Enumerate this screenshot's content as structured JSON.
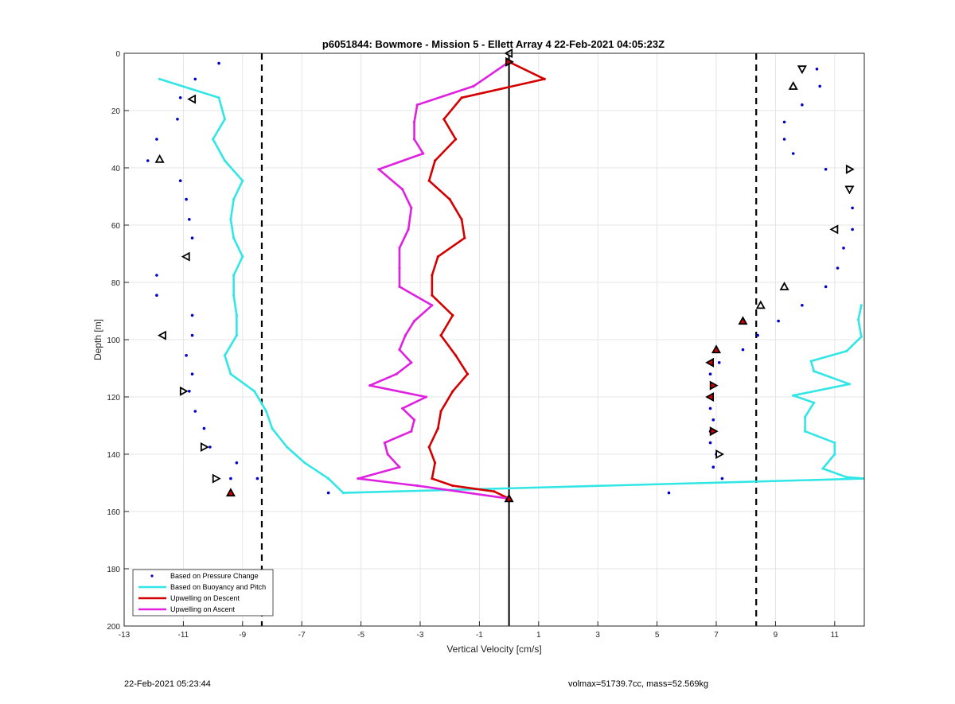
{
  "footer": {
    "timestamp": "22-Feb-2021 05:23:44",
    "summary": "volmax=51739.7cc, mass=52.569kg"
  },
  "colors": {
    "pressure": "#0000cc",
    "buoyancy": "#33e6e6",
    "descent": "#d40000",
    "ascent": "#e020e0",
    "grid": "#e6e6e6",
    "axis": "#262626"
  },
  "chart_data": {
    "type": "line",
    "title": "p6051844: Bowmore - Mission 5 - Ellett Array 4 22-Feb-2021 04:05:23Z",
    "xlabel": "Vertical Velocity [cm/s]",
    "ylabel": "Depth [m]",
    "xlim": [
      -13,
      12
    ],
    "ylim": [
      0,
      200
    ],
    "y_reversed": true,
    "grid": true,
    "legend_position": "bottom-left",
    "xticks": [
      -13,
      -11,
      -9,
      -7,
      -5,
      -3,
      -1,
      1,
      3,
      5,
      7,
      9,
      11
    ],
    "yticks": [
      0,
      20,
      40,
      60,
      80,
      100,
      120,
      140,
      160,
      180,
      200
    ],
    "reference_lines": {
      "solid_x": 0,
      "dashed_x": [
        -8.35,
        8.35
      ]
    },
    "legend": [
      "Based on Pressure Change",
      "Based on Buoyancy and Pitch",
      "Upwelling on Descent",
      "Upwelling on Ascent"
    ],
    "series": [
      {
        "name": "Based on Pressure Change",
        "points": [
          [
            -9.8,
            3.5
          ],
          [
            -10.6,
            9
          ],
          [
            -11.1,
            15.5
          ],
          [
            -11.2,
            23
          ],
          [
            -11.9,
            30
          ],
          [
            -12.2,
            37.5
          ],
          [
            -11.1,
            44.5
          ],
          [
            -10.9,
            51
          ],
          [
            -10.8,
            58
          ],
          [
            -10.7,
            64.5
          ],
          [
            -10.9,
            71
          ],
          [
            -11.9,
            77.5
          ],
          [
            -11.9,
            84.5
          ],
          [
            -10.7,
            91.5
          ],
          [
            -10.7,
            98.5
          ],
          [
            -10.9,
            105.5
          ],
          [
            -10.7,
            112
          ],
          [
            -10.8,
            118
          ],
          [
            -10.6,
            125
          ],
          [
            -10.3,
            131
          ],
          [
            -10.1,
            137.5
          ],
          [
            -9.2,
            143
          ],
          [
            -9.4,
            148.5
          ],
          [
            -8.5,
            148.5
          ],
          [
            -9.4,
            153.5
          ],
          [
            -6.1,
            153.5
          ],
          [
            0,
            155.5
          ],
          [
            5.4,
            153.5
          ],
          [
            10.4,
            5.5
          ],
          [
            10.5,
            11.5
          ],
          [
            9.9,
            18
          ],
          [
            9.3,
            24
          ],
          [
            9.3,
            30
          ],
          [
            9.6,
            35
          ],
          [
            10.7,
            40.5
          ],
          [
            11.5,
            47.5
          ],
          [
            11.6,
            54
          ],
          [
            11.6,
            61.5
          ],
          [
            11.3,
            68
          ],
          [
            11.1,
            75
          ],
          [
            10.7,
            81.5
          ],
          [
            9.9,
            88
          ],
          [
            9.1,
            93.5
          ],
          [
            8.4,
            98.5
          ],
          [
            7.9,
            103.5
          ],
          [
            7.1,
            108
          ],
          [
            6.8,
            112
          ],
          [
            6.9,
            116
          ],
          [
            6.8,
            120
          ],
          [
            6.8,
            124
          ],
          [
            6.9,
            128
          ],
          [
            6.8,
            132
          ],
          [
            6.8,
            136
          ],
          [
            7.0,
            140
          ],
          [
            6.9,
            144.5
          ],
          [
            7.2,
            148.5
          ]
        ]
      },
      {
        "name": "Based on Buoyancy and Pitch",
        "points": [
          [
            -11.8,
            9
          ],
          [
            -9.8,
            15.5
          ],
          [
            -9.6,
            23
          ],
          [
            -10.0,
            30
          ],
          [
            -9.6,
            37.5
          ],
          [
            -9.0,
            44.5
          ],
          [
            -9.3,
            51
          ],
          [
            -9.4,
            58
          ],
          [
            -9.3,
            64.5
          ],
          [
            -9.0,
            71
          ],
          [
            -9.3,
            77.5
          ],
          [
            -9.3,
            84.5
          ],
          [
            -9.2,
            91.5
          ],
          [
            -9.2,
            98.5
          ],
          [
            -9.6,
            105.5
          ],
          [
            -9.4,
            112
          ],
          [
            -8.6,
            118
          ],
          [
            -8.2,
            125
          ],
          [
            -8.0,
            131
          ],
          [
            -7.5,
            137.5
          ],
          [
            -6.9,
            143
          ],
          [
            -6.1,
            148.5
          ],
          [
            -5.6,
            153.5
          ],
          [
            12,
            148.5
          ],
          [
            11.4,
            148
          ],
          [
            10.6,
            145
          ],
          [
            11.0,
            140
          ],
          [
            11.0,
            136
          ],
          [
            10.0,
            132
          ],
          [
            10.0,
            127
          ],
          [
            10.3,
            122
          ],
          [
            9.6,
            119.5
          ],
          [
            11.5,
            115.5
          ],
          [
            10.3,
            111
          ],
          [
            10.2,
            107.5
          ],
          [
            11.4,
            104
          ],
          [
            11.9,
            99
          ],
          [
            11.8,
            93
          ],
          [
            11.9,
            88
          ]
        ]
      },
      {
        "name": "Upwelling on Descent",
        "points": [
          [
            0,
            3
          ],
          [
            1.2,
            9
          ],
          [
            -1.6,
            15.5
          ],
          [
            -2.2,
            23
          ],
          [
            -1.8,
            30
          ],
          [
            -2.5,
            37.5
          ],
          [
            -2.7,
            44.5
          ],
          [
            -2.0,
            51
          ],
          [
            -1.6,
            58
          ],
          [
            -1.5,
            64.5
          ],
          [
            -2.4,
            71
          ],
          [
            -2.6,
            77.5
          ],
          [
            -2.6,
            84.5
          ],
          [
            -1.9,
            91.5
          ],
          [
            -2.3,
            98.5
          ],
          [
            -1.8,
            105.5
          ],
          [
            -1.4,
            112
          ],
          [
            -1.9,
            118
          ],
          [
            -2.3,
            125
          ],
          [
            -2.4,
            131
          ],
          [
            -2.7,
            137.5
          ],
          [
            -2.5,
            143
          ],
          [
            -2.6,
            148.5
          ],
          [
            -1.9,
            151
          ],
          [
            -0.5,
            153
          ],
          [
            0,
            155.5
          ]
        ]
      },
      {
        "name": "Upwelling on Ascent",
        "points": [
          [
            0,
            3
          ],
          [
            -1.2,
            11.5
          ],
          [
            -3.1,
            18
          ],
          [
            -3.2,
            24
          ],
          [
            -3.2,
            30
          ],
          [
            -2.9,
            35
          ],
          [
            -4.4,
            40.5
          ],
          [
            -3.6,
            47.5
          ],
          [
            -3.3,
            54
          ],
          [
            -3.4,
            61.5
          ],
          [
            -3.7,
            68
          ],
          [
            -3.7,
            75
          ],
          [
            -3.7,
            81.5
          ],
          [
            -2.6,
            88
          ],
          [
            -3.2,
            93.5
          ],
          [
            -3.5,
            98.5
          ],
          [
            -3.7,
            103.5
          ],
          [
            -3.3,
            108
          ],
          [
            -3.8,
            112
          ],
          [
            -4.7,
            116
          ],
          [
            -2.8,
            120
          ],
          [
            -3.6,
            124
          ],
          [
            -3.2,
            128
          ],
          [
            -3.3,
            132
          ],
          [
            -4.2,
            136
          ],
          [
            -4.1,
            140
          ],
          [
            -3.7,
            144.5
          ],
          [
            -5.1,
            148.5
          ],
          [
            -3.1,
            151
          ],
          [
            0,
            155.5
          ]
        ]
      }
    ],
    "markers": {
      "hollow": [
        {
          "x": 0,
          "y": 0,
          "dir": "left"
        },
        {
          "x": -10.7,
          "y": 16,
          "dir": "left"
        },
        {
          "x": -11.8,
          "y": 37,
          "dir": "up"
        },
        {
          "x": -10.9,
          "y": 71,
          "dir": "left"
        },
        {
          "x": -11.7,
          "y": 98.5,
          "dir": "left"
        },
        {
          "x": -11.0,
          "y": 118,
          "dir": "right"
        },
        {
          "x": -10.3,
          "y": 137.5,
          "dir": "right"
        },
        {
          "x": -9.9,
          "y": 148.5,
          "dir": "right"
        },
        {
          "x": 9.9,
          "y": 5.5,
          "dir": "down"
        },
        {
          "x": 9.6,
          "y": 11.5,
          "dir": "up"
        },
        {
          "x": 11.5,
          "y": 40.5,
          "dir": "right"
        },
        {
          "x": 11.5,
          "y": 47.5,
          "dir": "down"
        },
        {
          "x": 11.0,
          "y": 61.5,
          "dir": "left"
        },
        {
          "x": 9.3,
          "y": 81.5,
          "dir": "up"
        },
        {
          "x": 8.5,
          "y": 88,
          "dir": "up"
        },
        {
          "x": 7.1,
          "y": 140,
          "dir": "right"
        }
      ],
      "filled": [
        {
          "x": 0,
          "y": 3,
          "dir": "right"
        },
        {
          "x": -9.4,
          "y": 153.5,
          "dir": "up"
        },
        {
          "x": 0,
          "y": 155.5,
          "dir": "up"
        },
        {
          "x": 7.9,
          "y": 93.5,
          "dir": "up"
        },
        {
          "x": 7.0,
          "y": 103.5,
          "dir": "up"
        },
        {
          "x": 6.8,
          "y": 108,
          "dir": "left"
        },
        {
          "x": 6.9,
          "y": 116,
          "dir": "right"
        },
        {
          "x": 6.8,
          "y": 120,
          "dir": "left"
        },
        {
          "x": 6.9,
          "y": 132,
          "dir": "right"
        }
      ]
    }
  }
}
